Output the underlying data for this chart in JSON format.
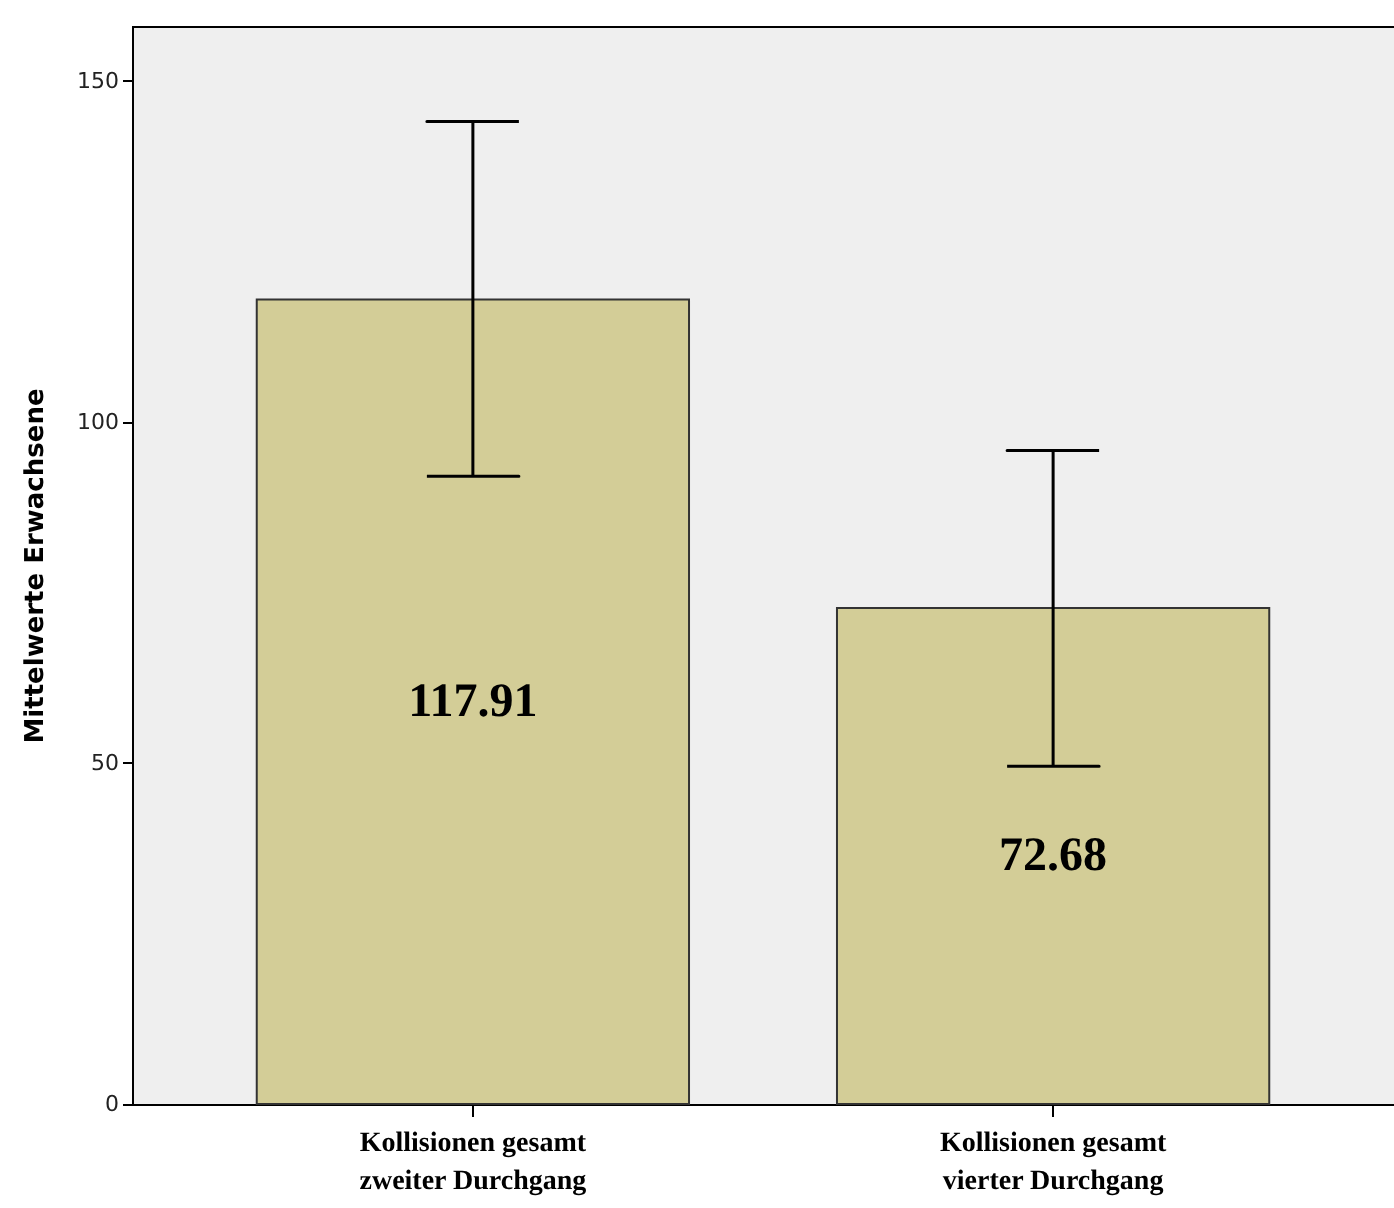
{
  "chart_data": {
    "type": "bar",
    "ylabel": "Mittelwerte Erwachsene",
    "categories": [
      "Kollisionen gesamt zweiter Durchgang",
      "Kollisionen gesamt vierter Durchgang"
    ],
    "values": [
      117.91,
      72.68
    ],
    "color": "#d3cd97",
    "errors": [
      [
        92,
        144
      ],
      [
        49.5,
        95.8
      ]
    ],
    "data_labels": true,
    "ylim": [
      0,
      158
    ],
    "yticks": [
      0,
      50,
      100,
      150
    ]
  }
}
